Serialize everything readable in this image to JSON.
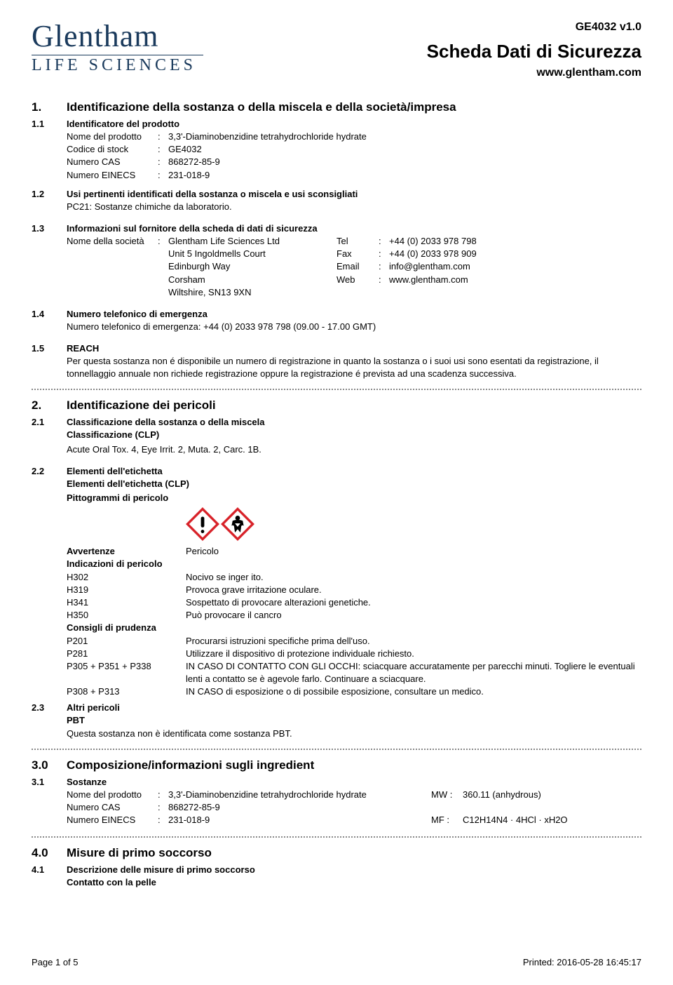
{
  "brand": {
    "top": "Glentham",
    "bottom": "LIFE SCIENCES",
    "color": "#1a3a5c"
  },
  "header": {
    "code": "GE4032 v1.0",
    "title": "Scheda Dati di Sicurezza",
    "web": "www.glentham.com"
  },
  "s1": {
    "num": "1.",
    "title": "Identificazione della sostanza o della miscela e della società/impresa",
    "s11": {
      "num": "1.1",
      "title": "Identificatore del prodotto"
    },
    "product": {
      "name_label": "Nome del prodotto",
      "name": "3,3'-Diaminobenzidine tetrahydrochloride hydrate",
      "stock_label": "Codice di stock",
      "stock": "GE4032",
      "cas_label": "Numero CAS",
      "cas": "868272-85-9",
      "einecs_label": "Numero EINECS",
      "einecs": "231-018-9"
    },
    "s12": {
      "num": "1.2",
      "title": "Usi pertinenti identificati della sostanza o miscela e usi sconsigliati",
      "text": "PC21: Sostanze chimiche da laboratorio."
    },
    "s13": {
      "num": "1.3",
      "title": "Informazioni sul fornitore della scheda di dati di sicurezza"
    },
    "company": {
      "label": "Nome della società",
      "lines": [
        "Glentham Life Sciences Ltd",
        "Unit 5 Ingoldmells Court",
        "Edinburgh Way",
        "Corsham",
        "Wiltshire, SN13 9XN"
      ],
      "tel_label": "Tel",
      "tel": "+44 (0) 2033 978 798",
      "fax_label": "Fax",
      "fax": "+44 (0) 2033 978 909",
      "email_label": "Email",
      "email": "info@glentham.com",
      "web_label": "Web",
      "web": "www.glentham.com"
    },
    "s14": {
      "num": "1.4",
      "title": "Numero telefonico di emergenza",
      "text": "Numero telefonico di emergenza: +44 (0) 2033 978 798 (09.00 - 17.00 GMT)"
    },
    "s15": {
      "num": "1.5",
      "title": "REACH",
      "text": "Per questa sostanza non é disponibile un numero di registrazione in quanto la sostanza o i suoi usi sono esentati da registrazione, il tonnellaggio annuale non richiede registrazione oppure la registrazione é prevista ad una scadenza successiva."
    }
  },
  "s2": {
    "num": "2.",
    "title": "Identificazione dei pericoli",
    "s21": {
      "num": "2.1",
      "title": "Classificazione della sostanza o della miscela",
      "sub": "Classificazione (CLP)",
      "text": "Acute Oral Tox. 4, Eye Irrit. 2, Muta. 2, Carc. 1B."
    },
    "s22": {
      "num": "2.2",
      "title": "Elementi dell'etichetta",
      "sub": "Elementi dell'etichetta (CLP)",
      "picto_label": "Pittogrammi di pericolo",
      "warn_label": "Avvertenze",
      "warn": "Pericolo",
      "haz_label": "Indicazioni di pericolo",
      "hazards": [
        {
          "code": "H302",
          "text": "Nocivo se inger ito."
        },
        {
          "code": "H319",
          "text": "Provoca grave irritazione oculare."
        },
        {
          "code": "H341",
          "text": "Sospettato di provocare alterazioni genetiche."
        },
        {
          "code": "H350",
          "text": "Può provocare il cancro"
        }
      ],
      "prec_label": "Consigli di prudenza",
      "precautions": [
        {
          "code": "P201",
          "text": "Procurarsi istruzioni specifiche prima dell'uso."
        },
        {
          "code": "P281",
          "text": "Utilizzare il dispositivo di protezione individuale richiesto."
        },
        {
          "code": "P305 + P351 + P338",
          "text": "IN CASO DI CONTATTO CON GLI OCCHI: sciacquare accuratamente per parecchi minuti. Togliere le eventuali lenti a contatto se è agevole farlo. Continuare a sciacquare."
        },
        {
          "code": "P308 + P313",
          "text": "IN CASO di esposizione o di possibile esposizione, consultare un medico."
        }
      ]
    },
    "s23": {
      "num": "2.3",
      "title": "Altri pericoli",
      "sub": "PBT",
      "text": "Questa sostanza non è identificata come sostanza PBT."
    }
  },
  "s3": {
    "num": "3.0",
    "title": "Composizione/informazioni sugli ingredient",
    "s31": {
      "num": "3.1",
      "title": "Sostanze"
    },
    "comp": {
      "name_label": "Nome del prodotto",
      "name": "3,3'-Diaminobenzidine tetrahydrochloride hydrate",
      "cas_label": "Numero CAS",
      "cas": "868272-85-9",
      "einecs_label": "Numero EINECS",
      "einecs": "231-018-9",
      "mw_label": "MW :",
      "mw": "360.11 (anhydrous)",
      "mf_label": "MF :",
      "mf": "C12H14N4 · 4HCl · xH2O"
    }
  },
  "s4": {
    "num": "4.0",
    "title": "Misure di primo soccorso",
    "s41": {
      "num": "4.1",
      "title": "Descrizione delle misure di primo soccorso",
      "sub": "Contatto con la pelle"
    }
  },
  "footer": {
    "page": "Page 1 of 5",
    "printed": "Printed: 2016-05-28 16:45:17"
  },
  "colors": {
    "ghs_red": "#d8232a",
    "ghs_black": "#000000"
  }
}
